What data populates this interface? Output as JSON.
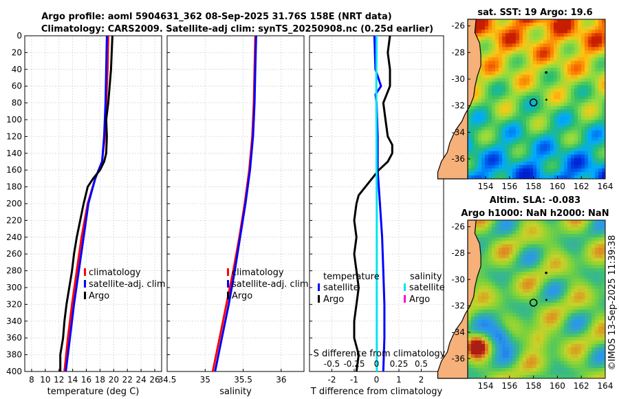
{
  "title_line1": "Argo profile: aoml 5904631_362 08-Sep-2025 31.76S 158E (NRT data)",
  "title_line2": "Climatology: CARS2009. Satellite-adj clim: synTS_20250908.nc (0.25d earlier)",
  "copyright": "©IMOS 13-Sep-2025 11:39:38",
  "colors": {
    "climatology": "#ff0000",
    "satellite": "#0000ff",
    "argo": "#000000",
    "sat_salinity": "#00e5ee",
    "argo_salinity": "#ff00cc"
  },
  "chart_data": [
    {
      "id": "temperature",
      "type": "line",
      "xlabel": "temperature (deg C)",
      "xlim": [
        7,
        27
      ],
      "xticks": [
        8,
        10,
        12,
        14,
        16,
        18,
        20,
        22,
        24,
        26
      ],
      "ylim": [
        0,
        400
      ],
      "yticks": [
        0,
        20,
        40,
        60,
        80,
        100,
        120,
        140,
        160,
        180,
        200,
        220,
        240,
        260,
        280,
        300,
        320,
        340,
        360,
        380,
        400
      ],
      "grid": true,
      "legend": [
        "climatology",
        "satellite-adj. clim",
        "Argo"
      ],
      "series": [
        {
          "name": "climatology",
          "color": "#ff0000",
          "depth": [
            0,
            40,
            80,
            120,
            150,
            170,
            200,
            240,
            280,
            320,
            360,
            400
          ],
          "values": [
            19.2,
            19.1,
            18.9,
            18.7,
            18.3,
            17.3,
            16.2,
            15.3,
            14.6,
            13.9,
            13.3,
            12.8
          ]
        },
        {
          "name": "satellite-adj. clim",
          "color": "#0000ff",
          "depth": [
            0,
            40,
            80,
            120,
            150,
            170,
            200,
            240,
            280,
            320,
            360,
            400
          ],
          "values": [
            19.0,
            18.9,
            18.8,
            18.6,
            18.3,
            17.3,
            16.3,
            15.6,
            14.9,
            14.2,
            13.6,
            13.0
          ]
        },
        {
          "name": "Argo",
          "color": "#000000",
          "depth": [
            0,
            20,
            40,
            60,
            80,
            100,
            120,
            140,
            150,
            160,
            170,
            180,
            190,
            200,
            220,
            240,
            260,
            280,
            300,
            320,
            340,
            360,
            380,
            400
          ],
          "values": [
            19.8,
            19.7,
            19.6,
            19.4,
            19.2,
            18.9,
            19.0,
            18.9,
            18.6,
            18.0,
            17.0,
            16.2,
            15.9,
            15.6,
            15.1,
            14.6,
            14.2,
            13.9,
            13.5,
            13.1,
            12.8,
            12.6,
            12.2,
            12.2
          ]
        }
      ]
    },
    {
      "id": "salinity",
      "type": "line",
      "xlabel": "salinity",
      "xlim": [
        34.5,
        36.3
      ],
      "xticks": [
        34.5,
        35,
        35.5,
        36
      ],
      "ylim": [
        0,
        400
      ],
      "grid": true,
      "legend": [
        "climatology",
        "satellite-adj. clim",
        "Argo"
      ],
      "series": [
        {
          "name": "climatology",
          "color": "#ff0000",
          "depth": [
            0,
            40,
            80,
            120,
            160,
            200,
            240,
            280,
            320,
            360,
            400
          ],
          "values": [
            35.66,
            35.65,
            35.64,
            35.62,
            35.58,
            35.52,
            35.45,
            35.37,
            35.28,
            35.19,
            35.1
          ]
        },
        {
          "name": "satellite-adj. clim",
          "color": "#0000ff",
          "depth": [
            0,
            40,
            80,
            120,
            160,
            200,
            240,
            280,
            320,
            360,
            400
          ],
          "values": [
            35.67,
            35.66,
            35.65,
            35.63,
            35.59,
            35.53,
            35.46,
            35.39,
            35.31,
            35.22,
            35.13
          ]
        }
      ]
    },
    {
      "id": "difference",
      "type": "line",
      "xlabel": "T difference from climatology",
      "xlabel_top": "S difference from climatology",
      "xlim": [
        -3,
        3
      ],
      "xticks": [
        -2,
        -1,
        0,
        1,
        2
      ],
      "top_ticks": [
        "-0.5",
        "-0.25",
        "0",
        "0.25",
        "0.5"
      ],
      "ylim": [
        0,
        400
      ],
      "grid": true,
      "legend_headers": [
        "temperature",
        "salinity"
      ],
      "legend_left": [
        "satellite",
        "Argo"
      ],
      "legend_right": [
        "satellite",
        "Argo"
      ],
      "series": [
        {
          "name": "T satellite",
          "color": "#0000ff",
          "depth": [
            0,
            40,
            60,
            70,
            80,
            120,
            160,
            200,
            240,
            280,
            320,
            360,
            400
          ],
          "values": [
            -0.1,
            -0.05,
            0.2,
            -0.05,
            0.0,
            0.05,
            0.05,
            0.15,
            0.25,
            0.3,
            0.35,
            0.35,
            0.3
          ]
        },
        {
          "name": "T Argo",
          "color": "#000000",
          "depth": [
            0,
            20,
            40,
            60,
            80,
            100,
            120,
            130,
            140,
            150,
            160,
            170,
            180,
            190,
            200,
            220,
            240,
            260,
            280,
            300,
            320,
            340,
            360,
            380,
            400
          ],
          "values": [
            0.6,
            0.5,
            0.6,
            0.6,
            0.3,
            0.4,
            0.5,
            0.7,
            0.7,
            0.5,
            0.1,
            -0.2,
            -0.5,
            -0.8,
            -0.9,
            -1.0,
            -0.9,
            -1.0,
            -0.9,
            -0.8,
            -0.9,
            -1.0,
            -1.0,
            -0.8,
            -0.9
          ]
        },
        {
          "name": "S satellite",
          "color": "#00e5ee",
          "depth": [
            0,
            60,
            80,
            120,
            160,
            200,
            240,
            280,
            320,
            360,
            400
          ],
          "values": [
            0.0,
            -0.01,
            -0.01,
            0.0,
            0.0,
            0.01,
            0.01,
            0.01,
            0.01,
            0.01,
            0.01
          ]
        }
      ]
    },
    {
      "id": "sst_map",
      "type": "heatmap",
      "title": "sat. SST: 19 Argo: 19.6",
      "xticks": [
        "154",
        "156",
        "158",
        "160",
        "162",
        "164"
      ],
      "yticks": [
        "-26",
        "-28",
        "-30",
        "-32",
        "-34",
        "-36"
      ],
      "xlim": [
        152.5,
        164
      ],
      "ylim": [
        -37.5,
        -25.5
      ],
      "marker": {
        "lon": 158,
        "lat": -31.76
      }
    },
    {
      "id": "sla_map",
      "type": "heatmap",
      "title": "Altim. SLA: -0.083",
      "title2": "Argo h1000: NaN h2000: NaN",
      "xticks": [
        "154",
        "156",
        "158",
        "160",
        "162",
        "164"
      ],
      "yticks": [
        "-26",
        "-28",
        "-30",
        "-32",
        "-34",
        "-36"
      ],
      "xlim": [
        152.5,
        164
      ],
      "ylim": [
        -37.5,
        -25.5
      ],
      "marker": {
        "lon": 158,
        "lat": -31.76
      }
    }
  ]
}
